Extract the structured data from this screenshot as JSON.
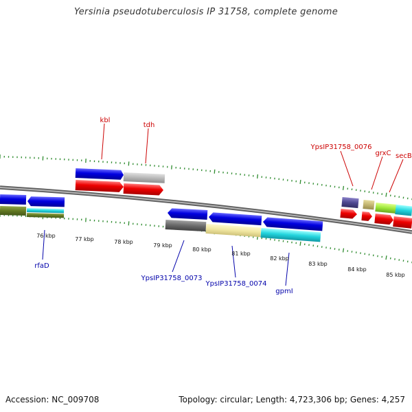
{
  "title": "Yersinia pseudotuberculosis IP 31758, complete genome",
  "footer": {
    "accession": "Accession: NC_009708",
    "summary": "Topology: circular; Length: 4,723,306 bp; Genes: 4,257"
  },
  "colors": {
    "backbone": "#8a8a8a",
    "tick": "#2e8b2e",
    "plus_label": "#cc0000",
    "minus_label": "#0000aa"
  },
  "axis": {
    "kbp_labels": [
      "76 kbp",
      "77 kbp",
      "78 kbp",
      "79 kbp",
      "80 kbp",
      "81 kbp",
      "82 kbp",
      "83 kbp",
      "84 kbp",
      "85 kbp"
    ]
  },
  "gene_labels": {
    "plus": [
      "kbl",
      "tdh",
      "YpsIP31758_0076",
      "grxC",
      "secB"
    ],
    "minus": [
      "rfaD",
      "YpsIP31758_0073",
      "YpsIP31758_0074",
      "gpmI"
    ]
  }
}
